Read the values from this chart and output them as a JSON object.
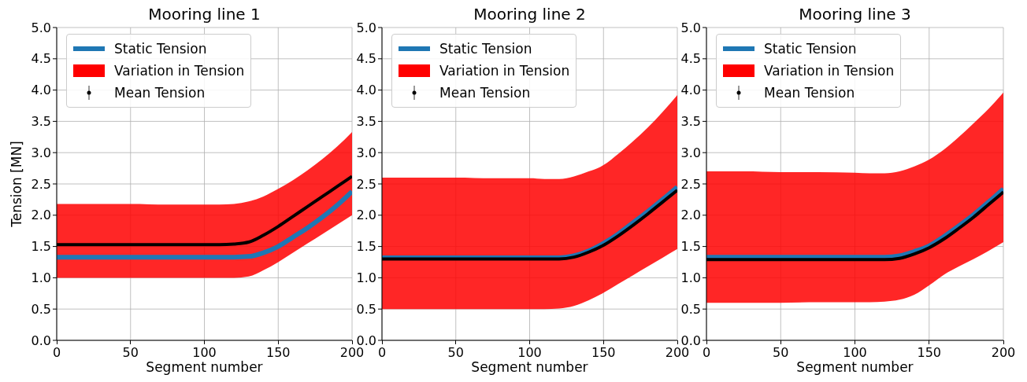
{
  "chart_data": [
    {
      "type": "line",
      "title": "Mooring line 1",
      "xlabel": "Segment number",
      "ylabel": "Tension [MN]",
      "x": [
        0,
        25,
        50,
        75,
        100,
        110,
        120,
        130,
        140,
        150,
        160,
        170,
        180,
        190,
        200
      ],
      "xlim": [
        0,
        200
      ],
      "xticks": [
        0,
        50,
        100,
        150,
        200
      ],
      "ylim": [
        0,
        5
      ],
      "yticks": [
        {
          "value": 0,
          "label": "0.0"
        },
        {
          "value": 0.5,
          "label": "0.5"
        },
        {
          "value": 1,
          "label": "1.0"
        },
        {
          "value": 1.5,
          "label": "1.5"
        },
        {
          "value": 2,
          "label": "2.0"
        },
        {
          "value": 2.5,
          "label": "2.5"
        },
        {
          "value": 3,
          "label": "3.0"
        },
        {
          "value": 3.5,
          "label": "3.5"
        },
        {
          "value": 4,
          "label": "4.0"
        },
        {
          "value": 4.5,
          "label": "4.5"
        },
        {
          "value": 5,
          "label": "5.0"
        }
      ],
      "grid": true,
      "legend": "top left",
      "series": [
        {
          "name": "Static Tension",
          "color": "#1f77b4",
          "values": [
            1.33,
            1.33,
            1.33,
            1.33,
            1.33,
            1.33,
            1.33,
            1.34,
            1.4,
            1.5,
            1.65,
            1.8,
            1.97,
            2.16,
            2.38
          ]
        },
        {
          "name": "Variation in Tension",
          "type": "area",
          "color": "#ff0000",
          "values": [
            null,
            null,
            null,
            null,
            null,
            null,
            null,
            null,
            null,
            null,
            null,
            null,
            null,
            null,
            null
          ]
        },
        {
          "name": "Mean Tension",
          "color": "#000000",
          "values": [
            1.53,
            1.53,
            1.53,
            1.53,
            1.53,
            1.53,
            1.54,
            1.57,
            1.68,
            1.82,
            1.98,
            2.14,
            2.3,
            2.46,
            2.62
          ],
          "lower": [
            1.0,
            1.0,
            1.0,
            1.0,
            1.0,
            1.0,
            1.0,
            1.02,
            1.12,
            1.25,
            1.4,
            1.55,
            1.7,
            1.85,
            2.0
          ],
          "upper": [
            2.18,
            2.18,
            2.18,
            2.17,
            2.17,
            2.17,
            2.18,
            2.22,
            2.3,
            2.42,
            2.56,
            2.72,
            2.9,
            3.1,
            3.33
          ]
        }
      ]
    },
    {
      "type": "line",
      "title": "Mooring line 2",
      "xlabel": "Segment number",
      "x": [
        0,
        25,
        50,
        75,
        100,
        110,
        120,
        130,
        140,
        150,
        160,
        170,
        180,
        190,
        200
      ],
      "xlim": [
        0,
        200
      ],
      "xticks": [
        0,
        50,
        100,
        150,
        200
      ],
      "ylim": [
        0,
        5
      ],
      "yticks": [
        {
          "value": 0,
          "label": "0.0"
        },
        {
          "value": 0.5,
          "label": "0.5"
        },
        {
          "value": 1,
          "label": "1.0"
        },
        {
          "value": 1.5,
          "label": "1.5"
        },
        {
          "value": 2,
          "label": "2.0"
        },
        {
          "value": 2.5,
          "label": "2.5"
        },
        {
          "value": 3,
          "label": "3.0"
        },
        {
          "value": 3.5,
          "label": "3.5"
        },
        {
          "value": 4,
          "label": "4.0"
        },
        {
          "value": 4.5,
          "label": "4.5"
        },
        {
          "value": 5,
          "label": "5.0"
        }
      ],
      "grid": true,
      "legend": "top left",
      "series": [
        {
          "name": "Static Tension",
          "color": "#1f77b4",
          "values": [
            1.32,
            1.32,
            1.32,
            1.32,
            1.32,
            1.32,
            1.32,
            1.35,
            1.43,
            1.55,
            1.7,
            1.88,
            2.06,
            2.25,
            2.45
          ]
        },
        {
          "name": "Variation in Tension",
          "type": "area",
          "color": "#ff0000",
          "values": [
            null,
            null,
            null,
            null,
            null,
            null,
            null,
            null,
            null,
            null,
            null,
            null,
            null,
            null,
            null
          ]
        },
        {
          "name": "Mean Tension",
          "color": "#000000",
          "values": [
            1.3,
            1.3,
            1.3,
            1.3,
            1.3,
            1.3,
            1.3,
            1.33,
            1.41,
            1.52,
            1.67,
            1.84,
            2.02,
            2.21,
            2.4
          ],
          "lower": [
            0.5,
            0.5,
            0.5,
            0.5,
            0.5,
            0.5,
            0.51,
            0.55,
            0.64,
            0.76,
            0.9,
            1.04,
            1.18,
            1.32,
            1.46
          ],
          "upper": [
            2.6,
            2.6,
            2.6,
            2.59,
            2.59,
            2.58,
            2.58,
            2.62,
            2.7,
            2.8,
            2.98,
            3.18,
            3.4,
            3.65,
            3.92
          ]
        }
      ]
    },
    {
      "type": "line",
      "title": "Mooring line 3",
      "xlabel": "Segment number",
      "x": [
        0,
        25,
        50,
        75,
        100,
        110,
        120,
        130,
        140,
        150,
        160,
        170,
        180,
        190,
        200
      ],
      "xlim": [
        0,
        200
      ],
      "xticks": [
        0,
        50,
        100,
        150,
        200
      ],
      "ylim": [
        0,
        5
      ],
      "yticks": [
        {
          "value": 0,
          "label": "0.0"
        },
        {
          "value": 0.5,
          "label": "0.5"
        },
        {
          "value": 1,
          "label": "1.0"
        },
        {
          "value": 1.5,
          "label": "1.5"
        },
        {
          "value": 2,
          "label": "2.0"
        },
        {
          "value": 2.5,
          "label": "2.5"
        },
        {
          "value": 3,
          "label": "3.0"
        },
        {
          "value": 3.5,
          "label": "3.5"
        },
        {
          "value": 4,
          "label": "4.0"
        },
        {
          "value": 4.5,
          "label": "4.5"
        },
        {
          "value": 5,
          "label": "5.0"
        }
      ],
      "grid": true,
      "legend": "top left",
      "series": [
        {
          "name": "Static Tension",
          "color": "#1f77b4",
          "values": [
            1.33,
            1.33,
            1.33,
            1.33,
            1.33,
            1.33,
            1.33,
            1.35,
            1.42,
            1.51,
            1.66,
            1.83,
            2.01,
            2.21,
            2.42
          ]
        },
        {
          "name": "Variation in Tension",
          "type": "area",
          "color": "#ff0000",
          "values": [
            null,
            null,
            null,
            null,
            null,
            null,
            null,
            null,
            null,
            null,
            null,
            null,
            null,
            null,
            null
          ]
        },
        {
          "name": "Mean Tension",
          "color": "#000000",
          "values": [
            1.29,
            1.29,
            1.29,
            1.29,
            1.29,
            1.29,
            1.29,
            1.31,
            1.38,
            1.48,
            1.62,
            1.79,
            1.97,
            2.17,
            2.37
          ],
          "lower": [
            0.6,
            0.6,
            0.6,
            0.61,
            0.61,
            0.61,
            0.62,
            0.65,
            0.73,
            0.88,
            1.05,
            1.18,
            1.3,
            1.43,
            1.57
          ],
          "upper": [
            2.7,
            2.7,
            2.69,
            2.69,
            2.68,
            2.67,
            2.67,
            2.7,
            2.78,
            2.89,
            3.05,
            3.25,
            3.47,
            3.7,
            3.96
          ]
        }
      ]
    }
  ]
}
